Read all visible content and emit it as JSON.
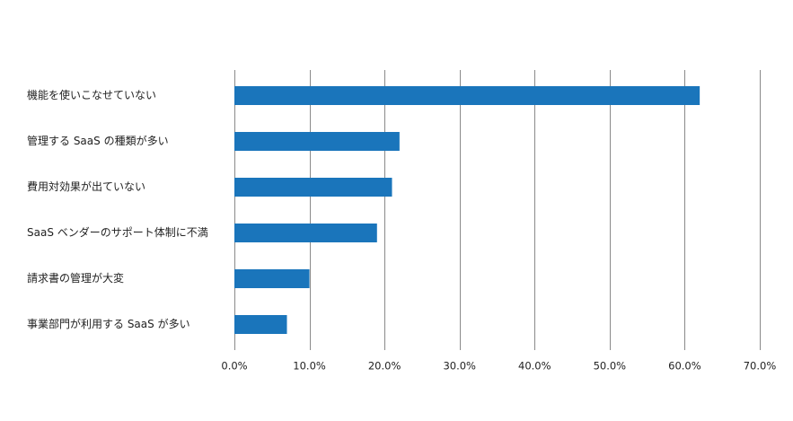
{
  "chart_data": {
    "type": "bar",
    "orientation": "horizontal",
    "categories": [
      "機能を使いこなせていない",
      "管理する SaaS の種類が多い",
      "費用対効果が出ていない",
      "SaaS ベンダーのサポート体制に不満",
      "請求書の管理が大変",
      "事業部門が利用する SaaS が多い"
    ],
    "values": [
      62.0,
      22.0,
      21.0,
      19.0,
      10.0,
      7.0
    ],
    "xlim": [
      0,
      70
    ],
    "ticks": [
      "0.0%",
      "10.0%",
      "20.0%",
      "30.0%",
      "40.0%",
      "50.0%",
      "60.0%",
      "70.0%"
    ],
    "grid": "vertical",
    "legend": "none",
    "bar_color": "#1a75bb",
    "grid_color": "#8a8a8a"
  }
}
